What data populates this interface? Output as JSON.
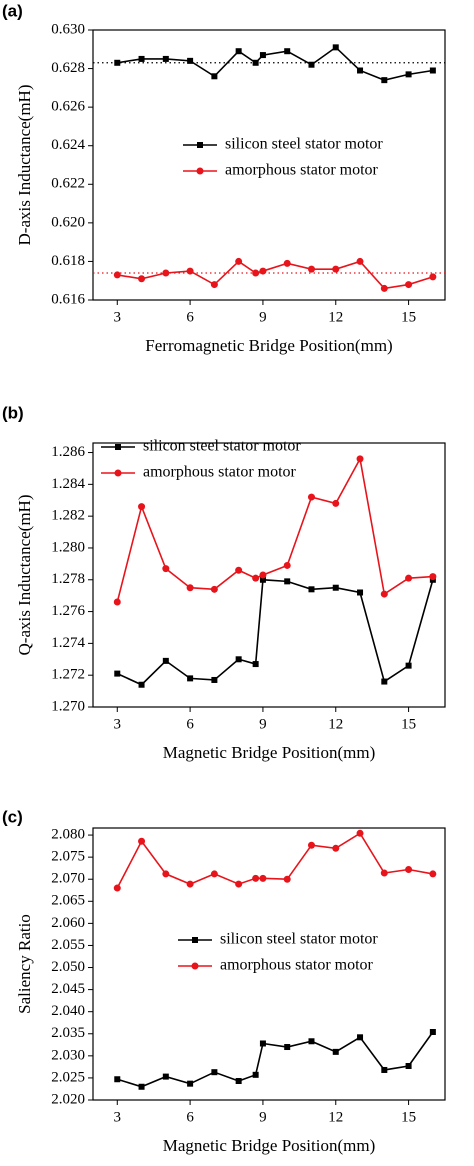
{
  "chart_data": [
    {
      "type": "line",
      "panel_label": "(a)",
      "x_label": "Ferromagnetic Bridge Position(mm)",
      "y_label": "D-axis Inductance(mH)",
      "x": [
        3,
        4,
        5,
        6,
        7,
        8,
        8.7,
        9,
        10,
        11,
        12,
        13,
        14,
        15,
        16
      ],
      "series": [
        {
          "name": "silicon steel stator motor",
          "color": "#000000",
          "marker": "square",
          "values": [
            0.6283,
            0.6285,
            0.6285,
            0.6284,
            0.6276,
            0.6289,
            0.6283,
            0.6287,
            0.6289,
            0.6282,
            0.6291,
            0.6279,
            0.6274,
            0.6277,
            0.6279
          ]
        },
        {
          "name": "amorphous stator motor",
          "color": "#e8141b",
          "marker": "circle",
          "values": [
            0.6173,
            0.6171,
            0.6174,
            0.6175,
            0.6168,
            0.618,
            0.6174,
            0.6175,
            0.6179,
            0.6176,
            0.6176,
            0.618,
            0.6166,
            0.6168,
            0.6172
          ]
        }
      ],
      "hlines": [
        {
          "value": 0.6283,
          "color": "#000000"
        },
        {
          "value": 0.6174,
          "color": "#e8141b"
        }
      ],
      "xlim": [
        2,
        16.5
      ],
      "xticks": [
        3,
        6,
        9,
        12,
        15
      ],
      "ylim": [
        0.616,
        0.63
      ],
      "yticks": [
        0.616,
        0.618,
        {
          "value": 0.62,
          "label": "0.620"
        },
        0.622,
        0.624,
        0.626,
        0.628,
        {
          "value": 0.63,
          "label": "0.630"
        }
      ],
      "legend": "center-right"
    },
    {
      "type": "line",
      "panel_label": "(b)",
      "x_label": "Magnetic Bridge Position(mm)",
      "y_label": "Q-axis Inductance(mH)",
      "x": [
        3,
        4,
        5,
        6,
        7,
        8,
        8.7,
        9,
        10,
        11,
        12,
        13,
        14,
        15,
        16
      ],
      "series": [
        {
          "name": "silicon steel stator motor",
          "color": "#000000",
          "marker": "square",
          "values": [
            1.2721,
            1.2714,
            1.2729,
            1.2718,
            1.2717,
            1.273,
            1.2727,
            1.278,
            1.2779,
            1.2774,
            1.2775,
            1.2772,
            1.2716,
            1.2726,
            1.278
          ]
        },
        {
          "name": "amorphous stator motor",
          "color": "#e8141b",
          "marker": "circle",
          "values": [
            1.2766,
            1.2826,
            1.2787,
            1.2775,
            1.2774,
            1.2786,
            1.2781,
            1.2783,
            1.2789,
            1.2832,
            1.2828,
            1.2856,
            1.2771,
            1.2781,
            1.2782
          ]
        }
      ],
      "xlim": [
        2,
        16.5
      ],
      "xticks": [
        3,
        6,
        9,
        12,
        15
      ],
      "ylim": [
        1.27,
        1.2866
      ],
      "yticks": [
        {
          "value": 1.27,
          "label": "1.270"
        },
        1.272,
        1.274,
        1.276,
        1.278,
        {
          "value": 1.28,
          "label": "1.280"
        },
        1.282,
        1.284,
        1.286
      ],
      "legend": "top"
    },
    {
      "type": "line",
      "panel_label": "(c)",
      "x_label": "Magnetic Bridge Position(mm)",
      "y_label": "Saliency Ratio",
      "x": [
        3,
        4,
        5,
        6,
        7,
        8,
        8.7,
        9,
        10,
        11,
        12,
        13,
        14,
        15,
        16
      ],
      "series": [
        {
          "name": "silicon steel stator motor",
          "color": "#000000",
          "marker": "square",
          "values": [
            2.0247,
            2.023,
            2.0253,
            2.0237,
            2.0263,
            2.0243,
            2.0257,
            2.0328,
            2.032,
            2.0333,
            2.0309,
            2.0342,
            2.0268,
            2.0277,
            2.0354
          ]
        },
        {
          "name": "amorphous stator motor",
          "color": "#e8141b",
          "marker": "circle",
          "values": [
            2.068,
            2.0786,
            2.0712,
            2.0689,
            2.0712,
            2.0689,
            2.0702,
            2.0702,
            2.07,
            2.0777,
            2.077,
            2.0804,
            2.0714,
            2.0722,
            2.0712
          ]
        }
      ],
      "xlim": [
        2,
        16.5
      ],
      "xticks": [
        3,
        6,
        9,
        12,
        15
      ],
      "ylim": [
        2.02,
        2.0816
      ],
      "yticks": [
        {
          "value": 2.02,
          "label": "2.020"
        },
        2.025,
        {
          "value": 2.03,
          "label": "2.030"
        },
        2.035,
        {
          "value": 2.04,
          "label": "2.040"
        },
        2.045,
        {
          "value": 2.05,
          "label": "2.050"
        },
        2.055,
        {
          "value": 2.06,
          "label": "2.060"
        },
        2.065,
        {
          "value": 2.07,
          "label": "2.070"
        },
        2.075,
        {
          "value": 2.08,
          "label": "2.080"
        }
      ],
      "legend": "center"
    }
  ]
}
